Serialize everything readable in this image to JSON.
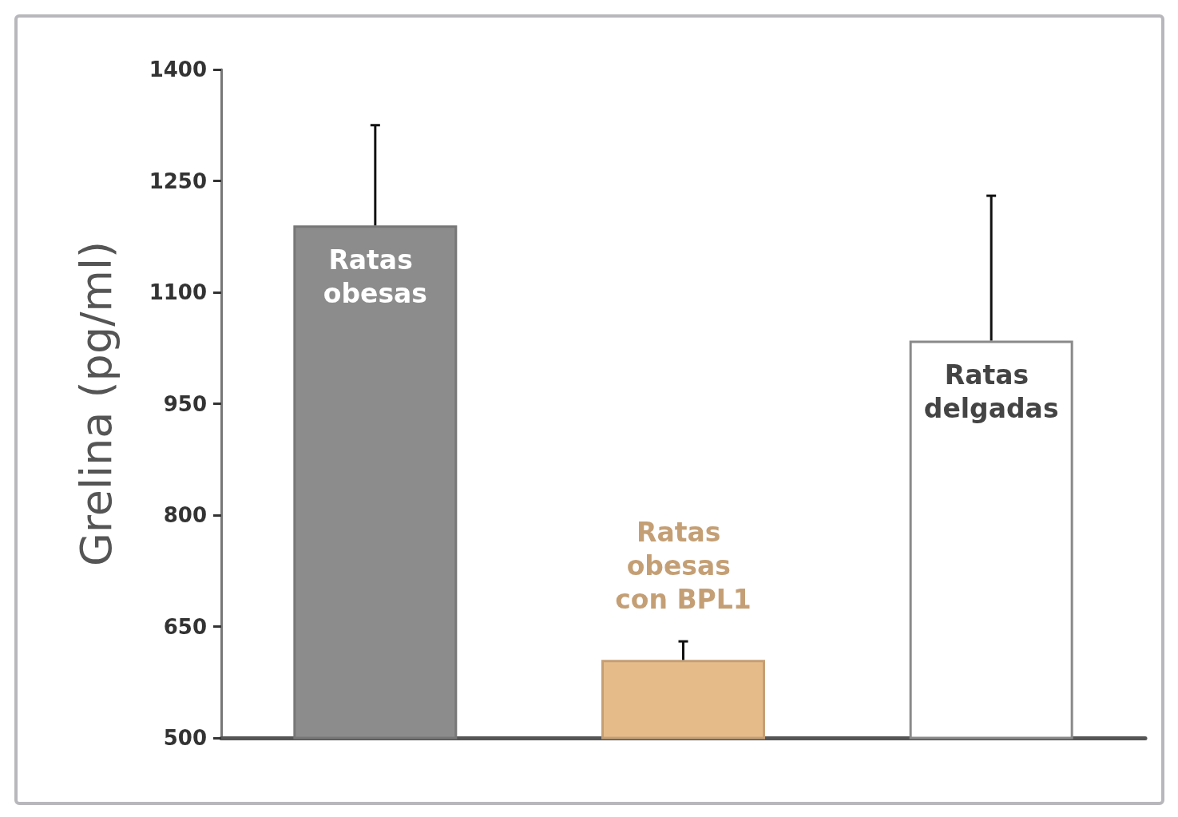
{
  "chart_data": {
    "type": "bar",
    "ylabel": "Grelina (pg/ml)",
    "categories": [
      "Ratas obesas",
      "Ratas obesas con BPL1",
      "Ratas delgadas"
    ],
    "values": [
      1190,
      605,
      1035
    ],
    "colors": [
      "#8c8c8c",
      "#e6bb8a",
      "#ffffff"
    ],
    "errors": [
      [
        1190,
        1325
      ],
      [
        605,
        630
      ],
      [
        1035,
        1230
      ]
    ],
    "ylim": [
      500,
      1400
    ],
    "yticks": [
      500,
      650,
      800,
      950,
      1100,
      1250,
      1400
    ],
    "grid": false
  }
}
